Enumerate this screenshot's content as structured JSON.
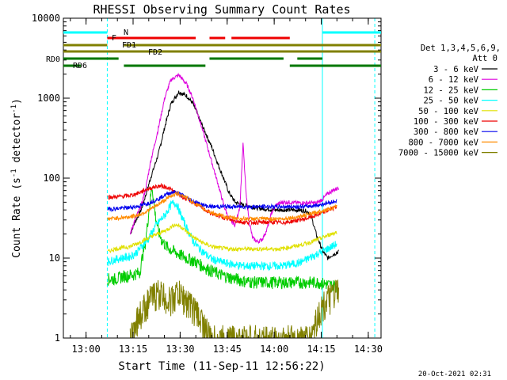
{
  "chart_data": {
    "type": "line",
    "title": "RHESSI Observing Summary Count Rates",
    "xlabel": "Start Time (11-Sep-11 12:56:22)",
    "ylabel": "Count Rate (s^-1 detector^-1)",
    "ylabel_main": "Count Rate (s",
    "ylabel_sup1": "-1",
    "ylabel_mid": " detector",
    "ylabel_sup2": "-1",
    "ylabel_end": ")",
    "footer": "20-Oct-2021 02:31",
    "x_scale": "time (minutes after 12:56:22)",
    "xlim_minutes": [
      -3.6,
      97.7
    ],
    "y_scale": "log",
    "ylim": [
      1,
      10000
    ],
    "x_ticks": [
      {
        "label": "13:00",
        "minutes": 3.63
      },
      {
        "label": "13:15",
        "minutes": 18.63
      },
      {
        "label": "13:30",
        "minutes": 33.63
      },
      {
        "label": "13:45",
        "minutes": 48.63
      },
      {
        "label": "14:00",
        "minutes": 63.63
      },
      {
        "label": "14:15",
        "minutes": 78.63
      },
      {
        "label": "14:30",
        "minutes": 93.63
      }
    ],
    "y_ticks": [
      {
        "label": "1",
        "value": 1
      },
      {
        "label": "10",
        "value": 10
      },
      {
        "label": "100",
        "value": 100
      },
      {
        "label": "1000",
        "value": 1000
      },
      {
        "label": "10000",
        "value": 10000
      }
    ],
    "legend_header": [
      "Det 1,3,4,5,6,9,",
      "Att 0"
    ],
    "series": [
      {
        "name": "3 - 6 keV",
        "color": "#000000",
        "x": [
          10.5,
          13.7,
          16.2,
          17.7,
          19.2,
          21.2,
          22.7,
          24.2,
          26.7,
          28.7,
          30.7,
          33.2,
          35.7,
          37.7,
          39.7,
          41.7,
          43.7,
          45.7,
          47.7,
          49.2,
          51.2,
          53.7,
          56.2,
          58.7,
          61.2,
          63.7,
          66.2,
          68.7,
          71.2,
          73.7,
          75.2,
          77.2,
          79.2,
          80.7,
          82.2,
          84.2
        ],
        "y": [
          null,
          null,
          null,
          20,
          28,
          40,
          62,
          100,
          200,
          430,
          850,
          1200,
          1070,
          860,
          560,
          370,
          245,
          150,
          95,
          66,
          50,
          46,
          44,
          42,
          41,
          40,
          40,
          40,
          40,
          39,
          36,
          19,
          12,
          10,
          11,
          12
        ]
      },
      {
        "name": "6 - 12 keV",
        "color": "#dd00dd",
        "x": [
          17.7,
          19.2,
          21.2,
          22.7,
          24.2,
          26.7,
          28.7,
          30.7,
          33.2,
          35.7,
          37.7,
          39.7,
          41.7,
          43.7,
          45.7,
          47.7,
          49.2,
          51.2,
          52.7,
          53.7,
          54.7,
          55.7,
          56.7,
          58.2,
          59.7,
          61.2,
          62.7,
          64.2,
          66.2,
          68.7,
          71.2,
          73.7,
          75.2,
          77.2,
          79.2,
          80.7,
          82.2,
          84.2
        ],
        "y": [
          20,
          30,
          45,
          75,
          160,
          420,
          1000,
          1700,
          1950,
          1500,
          1000,
          560,
          300,
          160,
          85,
          44,
          31,
          26,
          45,
          270,
          60,
          28,
          18,
          16,
          17,
          22,
          36,
          46,
          50,
          50,
          49,
          49,
          49,
          49,
          55,
          64,
          70,
          76
        ]
      },
      {
        "name": "12 - 25 keV",
        "color": "#00cc00",
        "x": [
          10.5,
          11.7,
          12.7,
          13.7,
          14.7,
          15.7,
          16.7,
          17.7,
          18.7,
          19.7,
          20.7,
          21.7,
          22.7,
          23.7,
          24.7,
          25.7,
          26.7,
          27.7,
          28.7,
          29.7,
          30.7,
          31.7,
          32.7,
          33.7,
          35.7,
          37.7,
          39.7,
          41.7,
          43.7,
          45.7,
          47.7,
          49.7,
          51.7,
          53.7,
          55.7,
          57.7,
          59.7,
          61.7,
          63.7,
          65.7,
          67.7,
          69.7,
          71.7,
          73.7,
          75.7,
          77.7,
          79.7,
          81.7,
          83.7
        ],
        "y": [
          5.5,
          5.5,
          5.5,
          5.6,
          5.8,
          6,
          6,
          6.2,
          6.2,
          6.5,
          6.5,
          11,
          17,
          40,
          80,
          35,
          22,
          17,
          15,
          13.5,
          12.8,
          12.2,
          11.5,
          11,
          10,
          9.4,
          8.5,
          7.6,
          7,
          6.4,
          6,
          5.7,
          5.5,
          5.2,
          5.1,
          5,
          5,
          5,
          5,
          5,
          5,
          5,
          5,
          5,
          5,
          5,
          4.8,
          4.6,
          4.5
        ]
      },
      {
        "name": "25 - 50 keV",
        "color": "#00ffff",
        "x": [
          10.5,
          12.7,
          14.7,
          16.7,
          17.7,
          18.7,
          19.7,
          20.7,
          21.7,
          22.7,
          23.7,
          24.7,
          25.7,
          26.7,
          27.7,
          28.7,
          29.7,
          30.7,
          31.7,
          32.7,
          33.7,
          35.7,
          37.7,
          39.7,
          41.7,
          43.7,
          45.7,
          47.7,
          49.7,
          51.7,
          53.7,
          55.7,
          57.7,
          59.7,
          61.7,
          63.7,
          65.7,
          67.7,
          69.7,
          71.7,
          73.7,
          75.7,
          77.7,
          79.7,
          81.7,
          83.7
        ],
        "y": [
          9,
          9.6,
          10,
          10.3,
          10.5,
          11,
          11.8,
          13,
          14.5,
          16,
          18,
          21,
          25,
          28,
          31,
          34,
          40,
          46,
          50,
          46,
          36,
          24,
          16.5,
          13.3,
          11.3,
          9.8,
          9.2,
          8.8,
          8.5,
          8.2,
          8,
          8,
          8,
          8,
          8,
          8,
          8,
          8.2,
          8.5,
          8.8,
          9.5,
          10.5,
          11.5,
          12.5,
          13.8,
          15.2
        ]
      },
      {
        "name": "50 - 100 keV",
        "color": "#e0e000",
        "x": [
          10.5,
          12.7,
          14.7,
          16.7,
          17.7,
          18.7,
          19.7,
          20.7,
          21.7,
          22.7,
          23.7,
          24.7,
          25.7,
          26.7,
          27.7,
          28.7,
          29.7,
          30.7,
          31.7,
          32.7,
          33.7,
          35.7,
          37.7,
          39.7,
          41.7,
          43.7,
          45.7,
          47.7,
          49.7,
          51.7,
          53.7,
          55.7,
          57.7,
          59.7,
          61.7,
          63.7,
          65.7,
          67.7,
          69.7,
          71.7,
          73.7,
          75.7,
          77.7,
          79.7,
          81.7,
          83.7
        ],
        "y": [
          12,
          13,
          13.4,
          13.7,
          14,
          14.5,
          15,
          15.8,
          16.5,
          17.2,
          18,
          18.8,
          19.5,
          20.2,
          21,
          22,
          23,
          24.5,
          26,
          26,
          25,
          21.5,
          18.5,
          16.5,
          15,
          14,
          13.5,
          13.2,
          13,
          13,
          13,
          13,
          13,
          13,
          13,
          13,
          13,
          13.5,
          14,
          14.5,
          15.2,
          16,
          17.2,
          18.5,
          20,
          21.2
        ]
      },
      {
        "name": "100 - 300 keV",
        "color": "#ee0000",
        "x": [
          10.5,
          12.7,
          14.7,
          16.7,
          17.7,
          18.7,
          19.7,
          20.7,
          21.7,
          22.7,
          23.7,
          24.7,
          25.7,
          26.7,
          27.7,
          28.7,
          29.7,
          30.7,
          31.7,
          32.7,
          33.7,
          35.7,
          37.7,
          39.7,
          41.7,
          43.7,
          45.7,
          47.7,
          49.7,
          51.7,
          53.7,
          55.7,
          57.7,
          59.7,
          61.7,
          63.7,
          65.7,
          67.7,
          69.7,
          71.7,
          73.7,
          75.7,
          77.7,
          79.7,
          81.7,
          83.7
        ],
        "y": [
          58,
          58,
          59,
          60,
          61,
          62,
          64,
          66,
          69,
          72,
          74,
          76,
          78,
          79,
          80,
          78,
          76,
          72,
          68,
          64,
          60,
          55,
          50,
          45,
          40,
          36,
          34,
          32,
          30,
          29,
          28,
          28,
          28,
          28,
          28,
          28,
          28,
          28,
          29,
          30,
          31,
          33,
          35,
          38,
          41,
          44
        ]
      },
      {
        "name": "300 - 800 keV",
        "color": "#0000ee",
        "x": [
          10.5,
          12.7,
          14.7,
          16.7,
          17.7,
          18.7,
          19.7,
          20.7,
          21.7,
          22.7,
          23.7,
          24.7,
          25.7,
          26.7,
          27.7,
          28.7,
          29.7,
          30.7,
          31.7,
          32.7,
          33.7,
          35.7,
          37.7,
          39.7,
          41.7,
          43.7,
          45.7,
          47.7,
          49.7,
          51.7,
          53.7,
          55.7,
          57.7,
          59.7,
          61.7,
          63.7,
          65.7,
          67.7,
          69.7,
          71.7,
          73.7,
          75.7,
          77.7,
          79.7,
          81.7,
          83.7
        ],
        "y": [
          41,
          41.5,
          42,
          42.5,
          43,
          43.5,
          44,
          45,
          46,
          47.5,
          49,
          51,
          53,
          55,
          58,
          61,
          64,
          66,
          67,
          66,
          63,
          57,
          52,
          48,
          45,
          44,
          44,
          44,
          44,
          44,
          44,
          44,
          44,
          44,
          44,
          44,
          44,
          44,
          44,
          44,
          44,
          45,
          46,
          48,
          50,
          52
        ]
      },
      {
        "name": "800 - 7000 keV",
        "color": "#ff8c00",
        "x": [
          10.5,
          12.7,
          14.7,
          16.7,
          17.7,
          18.7,
          19.7,
          20.7,
          21.7,
          22.7,
          23.7,
          24.7,
          25.7,
          26.7,
          27.7,
          28.7,
          29.7,
          30.7,
          31.7,
          32.7,
          33.7,
          35.7,
          37.7,
          39.7,
          41.7,
          43.7,
          45.7,
          47.7,
          49.7,
          51.7,
          53.7,
          55.7,
          57.7,
          59.7,
          61.7,
          63.7,
          65.7,
          67.7,
          69.7,
          71.7,
          73.7,
          75.7,
          77.7,
          79.7,
          81.7,
          83.7
        ],
        "y": [
          31,
          31.5,
          32,
          32.5,
          33,
          33.5,
          34,
          35,
          36.5,
          38,
          40,
          42,
          44.5,
          47,
          50,
          53,
          56,
          60,
          63,
          64,
          63,
          57,
          50,
          45,
          40,
          37,
          34.5,
          33,
          32,
          31.5,
          31,
          31,
          31,
          31,
          31,
          31,
          31,
          31.5,
          32,
          33,
          34.5,
          36,
          38,
          40,
          42,
          44
        ]
      },
      {
        "name": "7000 - 15000 keV",
        "color": "#808000",
        "x": [
          17.7,
          19.2,
          20.7,
          22.2,
          23.7,
          25.2,
          26.7,
          28.2,
          29.7,
          31.2,
          32.7,
          34.2,
          35.7,
          37.2,
          38.7,
          40.2,
          41.7,
          43.2,
          75.2,
          76.7,
          78.2,
          79.7,
          81.2,
          82.7,
          84.2
        ],
        "y": [
          1,
          1.5,
          2,
          2.5,
          3,
          3.5,
          3.8,
          3.5,
          3,
          3.2,
          3.8,
          3.4,
          3,
          2.6,
          2.2,
          1.8,
          1.4,
          1,
          1,
          1.6,
          2.2,
          2.8,
          3.2,
          3.6,
          4
        ]
      }
    ],
    "annotations": {
      "flare_flag_label": "F",
      "night_label": "N",
      "fd1_label": "FD1",
      "fd2_label": "FD2",
      "rd0_label": "RD0",
      "rd6_label": "RD6",
      "night_intervals": [
        [
          -3.6,
          10.4
        ],
        [
          79.0,
          97.7
        ]
      ],
      "flare_intervals": [
        [
          10.4,
          38.6
        ],
        [
          43.0,
          48.0
        ],
        [
          50.0,
          68.6
        ]
      ],
      "fd1_intervals": [
        [
          -3.6,
          10.4
        ],
        [
          15.7,
          97.7
        ]
      ],
      "fd2_intervals": [
        [
          -3.6,
          97.7
        ]
      ],
      "rd0_intervals": [
        [
          -3.6,
          14.0
        ],
        [
          43.0,
          66.6
        ],
        [
          71.0,
          79.0
        ]
      ],
      "rd6_intervals": [
        [
          -3.6,
          2.0
        ],
        [
          15.7,
          41.7
        ],
        [
          68.6,
          97.7
        ]
      ],
      "night_boundaries_solid": [
        -3.6,
        79.0
      ],
      "night_boundaries_dashed": [
        10.4,
        95.7
      ],
      "colors": {
        "night": "#00ffff",
        "flare": "#ee0000",
        "fd": "#808000",
        "rd": "#007700"
      }
    }
  }
}
